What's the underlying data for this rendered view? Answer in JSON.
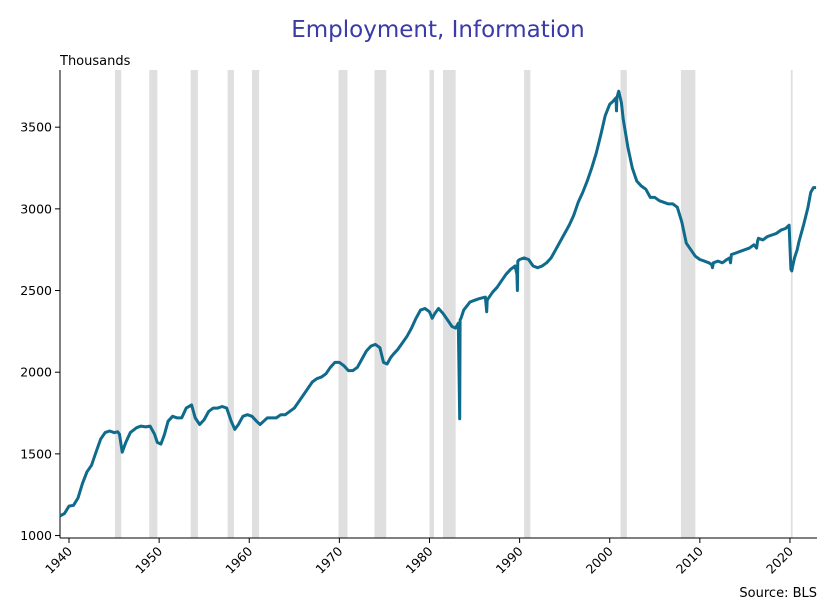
{
  "chart_data": {
    "type": "line",
    "title": "Employment, Information",
    "ylabel": "Thousands",
    "source": "Source: BLS",
    "xlim": [
      1939,
      2023
    ],
    "ylim": [
      985,
      3850
    ],
    "yticks": [
      1000,
      1500,
      2000,
      2500,
      3000,
      3500
    ],
    "xticks": [
      1940,
      1950,
      1960,
      1970,
      1980,
      1990,
      2000,
      2010,
      2020
    ],
    "grid": false,
    "line_color": "#0f6a8c",
    "recession_color": "#d9d9d9",
    "recessions": [
      [
        1945.1,
        1945.8
      ],
      [
        1948.9,
        1949.8
      ],
      [
        1953.5,
        1954.3
      ],
      [
        1957.6,
        1958.3
      ],
      [
        1960.3,
        1961.1
      ],
      [
        1969.9,
        1970.9
      ],
      [
        1973.9,
        1975.2
      ],
      [
        1980.0,
        1980.5
      ],
      [
        1981.5,
        1982.9
      ],
      [
        1990.5,
        1991.2
      ],
      [
        2001.2,
        2001.9
      ],
      [
        2007.9,
        2009.5
      ],
      [
        2020.1,
        2020.3
      ]
    ],
    "series": [
      {
        "x": [
          1939.0,
          1939.5,
          1940.0,
          1940.5,
          1941.0,
          1941.5,
          1942.0,
          1942.5,
          1943.0,
          1943.5,
          1944.0,
          1944.5,
          1945.0,
          1945.4,
          1945.6,
          1945.9,
          1946.3,
          1946.8,
          1947.5,
          1948.0,
          1948.5,
          1949.0,
          1949.5,
          1949.8,
          1950.2,
          1950.6,
          1951.0,
          1951.5,
          1952.0,
          1952.5,
          1953.0,
          1953.6,
          1954.0,
          1954.5,
          1955.0,
          1955.5,
          1956.0,
          1956.5,
          1957.0,
          1957.5,
          1958.0,
          1958.4,
          1958.8,
          1959.3,
          1959.8,
          1960.3,
          1960.8,
          1961.2,
          1961.6,
          1962.0,
          1962.5,
          1963.0,
          1963.5,
          1964.0,
          1965.0,
          1966.0,
          1967.0,
          1967.5,
          1968.0,
          1968.5,
          1969.0,
          1969.5,
          1970.0,
          1970.5,
          1971.0,
          1971.5,
          1972.0,
          1972.5,
          1973.0,
          1973.5,
          1974.0,
          1974.5,
          1974.9,
          1975.3,
          1975.7,
          1976.0,
          1976.5,
          1977.0,
          1977.5,
          1978.0,
          1978.5,
          1979.0,
          1979.5,
          1980.0,
          1980.3,
          1980.6,
          1981.0,
          1981.5,
          1982.0,
          1982.5,
          1982.9,
          1983.2,
          1983.35,
          1983.4,
          1983.5,
          1983.8,
          1984.5,
          1985.0,
          1985.5,
          1986.2,
          1986.35,
          1986.4,
          1986.5,
          1987.0,
          1987.5,
          1988.0,
          1988.5,
          1989.0,
          1989.5,
          1989.7,
          1989.75,
          1989.8,
          1990.0,
          1990.5,
          1991.0,
          1991.5,
          1992.0,
          1992.5,
          1993.0,
          1993.5,
          1994.0,
          1994.5,
          1995.0,
          1995.5,
          1996.0,
          1996.5,
          1997.0,
          1997.5,
          1998.0,
          1998.5,
          1999.0,
          1999.5,
          2000.0,
          2000.4,
          2000.7,
          2000.75,
          2000.8,
          2001.0,
          2001.3,
          2001.5,
          2001.8,
          2002.0,
          2002.5,
          2003.0,
          2003.5,
          2004.0,
          2004.5,
          2005.0,
          2005.5,
          2006.0,
          2006.5,
          2007.0,
          2007.5,
          2008.0,
          2008.5,
          2009.0,
          2009.5,
          2010.0,
          2010.5,
          2011.0,
          2011.3,
          2011.4,
          2011.5,
          2012.0,
          2012.5,
          2013.0,
          2013.3,
          2013.4,
          2013.5,
          2014.0,
          2014.5,
          2015.0,
          2015.5,
          2016.0,
          2016.3,
          2016.4,
          2016.5,
          2017.0,
          2017.5,
          2018.0,
          2018.5,
          2019.0,
          2019.5,
          2019.9,
          2020.1,
          2020.2,
          2020.3,
          2020.5,
          2020.8,
          2021.0,
          2021.5,
          2022.0,
          2022.3,
          2022.6,
          2022.9
        ],
        "y": [
          1120,
          1135,
          1180,
          1185,
          1230,
          1320,
          1390,
          1430,
          1510,
          1590,
          1630,
          1640,
          1630,
          1635,
          1620,
          1510,
          1570,
          1630,
          1660,
          1670,
          1665,
          1670,
          1620,
          1570,
          1560,
          1620,
          1700,
          1730,
          1720,
          1720,
          1780,
          1800,
          1720,
          1680,
          1710,
          1760,
          1780,
          1780,
          1790,
          1780,
          1700,
          1650,
          1680,
          1730,
          1740,
          1730,
          1700,
          1680,
          1700,
          1720,
          1720,
          1720,
          1740,
          1740,
          1780,
          1860,
          1940,
          1960,
          1970,
          1990,
          2030,
          2060,
          2060,
          2040,
          2010,
          2010,
          2030,
          2080,
          2130,
          2160,
          2170,
          2150,
          2060,
          2050,
          2090,
          2110,
          2140,
          2180,
          2220,
          2270,
          2330,
          2380,
          2390,
          2370,
          2330,
          2360,
          2390,
          2360,
          2320,
          2280,
          2270,
          2300,
          1715,
          2320,
          2330,
          2380,
          2430,
          2440,
          2450,
          2460,
          2370,
          2440,
          2450,
          2490,
          2520,
          2560,
          2600,
          2630,
          2650,
          2600,
          2500,
          2680,
          2690,
          2700,
          2690,
          2650,
          2640,
          2650,
          2670,
          2700,
          2750,
          2800,
          2850,
          2900,
          2960,
          3040,
          3100,
          3170,
          3250,
          3340,
          3450,
          3570,
          3640,
          3660,
          3680,
          3600,
          3680,
          3720,
          3650,
          3550,
          3450,
          3380,
          3250,
          3170,
          3140,
          3120,
          3070,
          3070,
          3050,
          3040,
          3030,
          3030,
          3010,
          2920,
          2790,
          2750,
          2710,
          2690,
          2680,
          2670,
          2660,
          2640,
          2670,
          2680,
          2670,
          2690,
          2700,
          2670,
          2720,
          2730,
          2740,
          2750,
          2760,
          2780,
          2760,
          2800,
          2820,
          2810,
          2830,
          2840,
          2850,
          2870,
          2880,
          2900,
          2630,
          2620,
          2650,
          2700,
          2750,
          2800,
          2900,
          3010,
          3100,
          3130,
          3130
        ]
      }
    ]
  }
}
